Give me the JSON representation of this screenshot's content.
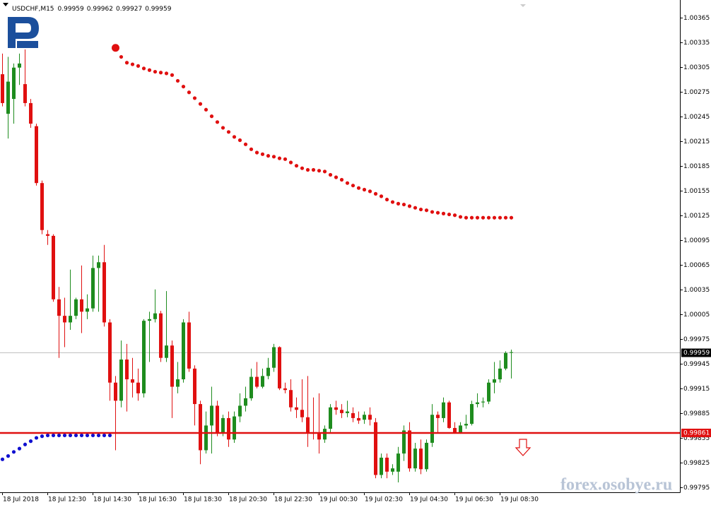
{
  "chart_data": {
    "type": "candlestick",
    "title": "USDCHF,M15",
    "watermark": "forex.osobye.ru",
    "categories": [
      "18 Jul 2018",
      null,
      null,
      null,
      null,
      null,
      null,
      null,
      "18 Jul 12:30",
      null,
      null,
      null,
      null,
      null,
      null,
      null,
      "18 Jul 14:30",
      null,
      null,
      null,
      null,
      null,
      null,
      null,
      "18 Jul 16:30",
      null,
      null,
      null,
      null,
      null,
      null,
      null,
      "18 Jul 18:30",
      null,
      null,
      null,
      null,
      null,
      null,
      null,
      "18 Jul 20:30",
      null,
      null,
      null,
      null,
      null,
      null,
      null,
      "18 Jul 22:30",
      null,
      null,
      null,
      null,
      null,
      null,
      null,
      "19 Jul 00:30",
      null,
      null,
      null,
      null,
      null,
      null,
      null,
      "19 Jul 02:30",
      null,
      null,
      null,
      null,
      null,
      null,
      null,
      "19 Jul 04:30",
      null,
      null,
      null,
      null,
      null,
      null,
      null,
      "19 Jul 06:30",
      null,
      null,
      null,
      null,
      null,
      null,
      null,
      "19 Jul 08:30",
      null,
      null
    ],
    "open": [
      1.00296,
      1.00248,
      1.00266,
      1.00304,
      1.00284,
      1.00261,
      1.00233,
      1.00164,
      1.00102,
      1.001,
      1.00023,
      1.00003,
      0.99995,
      1.00003,
      1.00023,
      1.00008,
      1.00012,
      1.00061,
      1.00068,
      0.99995,
      0.99922,
      0.999,
      0.9995,
      0.99926,
      0.99922,
      0.99909,
      0.99997,
      0.99999,
      1.00006,
      0.99952,
      0.99967,
      0.99917,
      0.99926,
      0.99995,
      0.99939,
      0.99896,
      0.9984,
      0.9987,
      0.99894,
      0.99861,
      0.99879,
      0.99853,
      0.99881,
      0.99894,
      0.99903,
      0.99929,
      0.99917,
      0.9993,
      0.9994,
      0.99965,
      0.99915,
      0.99913,
      0.99892,
      0.99889,
      0.9988,
      0.99861,
      0.9986,
      0.99853,
      0.99866,
      0.99892,
      0.99889,
      0.99885,
      0.99885,
      0.99879,
      0.99877,
      0.99883,
      0.99874,
      0.9981,
      0.99831,
      0.99814,
      0.99814,
      0.99836,
      0.99864,
      0.99818,
      0.99842,
      0.99817,
      0.99849,
      0.99883,
      0.99879,
      0.99898,
      0.99867,
      0.99861,
      0.9987,
      0.99872,
      0.99896,
      0.99898,
      0.99899,
      0.99922,
      0.99926,
      0.99939,
      0.99959
    ],
    "high": [
      1.00321,
      1.00317,
      1.00309,
      1.00321,
      1.00326,
      1.00266,
      1.00236,
      1.00167,
      1.00107,
      1.00102,
      1.00038,
      1.00025,
      1.00059,
      1.00025,
      1.00064,
      1.00029,
      1.00076,
      1.00076,
      1.00089,
      0.99999,
      0.9993,
      0.99973,
      0.99969,
      0.99952,
      0.99939,
      0.99999,
      1.00008,
      1.00035,
      1.00009,
      1.00033,
      0.99973,
      0.99947,
      0.99999,
      1.00008,
      0.99943,
      0.999,
      0.99887,
      0.99917,
      0.999,
      0.99883,
      0.99887,
      0.99887,
      0.99909,
      0.99917,
      0.99939,
      0.99947,
      0.99939,
      0.99952,
      0.99969,
      0.99966,
      0.99922,
      0.99926,
      0.99904,
      0.99926,
      0.9993,
      0.99904,
      0.99909,
      0.9987,
      0.99896,
      0.999,
      0.99896,
      0.999,
      0.99892,
      0.99887,
      0.99887,
      0.99892,
      0.99879,
      0.99836,
      0.99836,
      0.99823,
      0.99844,
      0.9987,
      0.99874,
      0.99849,
      0.99853,
      0.99853,
      0.99896,
      0.99887,
      0.99904,
      0.999,
      0.99874,
      0.99874,
      0.99883,
      0.999,
      0.99909,
      0.99904,
      0.99926,
      0.99947,
      0.99949,
      0.9996,
      0.99962
    ],
    "low": [
      1.00257,
      1.00218,
      1.00236,
      1.00283,
      1.00257,
      1.00231,
      1.00161,
      1.00102,
      1.00089,
      1.0002,
      0.99952,
      0.99965,
      0.99986,
      0.99999,
      0.99982,
      0.99999,
      1.00008,
      1.00008,
      0.9999,
      0.999,
      0.9984,
      0.99892,
      0.99887,
      0.99904,
      0.999,
      0.99904,
      0.99947,
      0.99995,
      0.99947,
      0.99947,
      0.99879,
      0.99909,
      0.99922,
      0.99935,
      0.9987,
      0.99823,
      0.99836,
      0.99836,
      0.99857,
      0.99857,
      0.99844,
      0.99849,
      0.99874,
      0.99887,
      0.999,
      0.99915,
      0.99915,
      0.99926,
      0.99935,
      0.99913,
      0.99909,
      0.99887,
      0.99879,
      0.99874,
      0.99844,
      0.99853,
      0.99836,
      0.99849,
      0.99861,
      0.99883,
      0.99879,
      0.9988,
      0.99874,
      0.99872,
      0.99872,
      0.9987,
      0.99806,
      0.99806,
      0.99806,
      0.9981,
      0.99801,
      0.99827,
      0.99814,
      0.99814,
      0.99811,
      0.99814,
      0.99844,
      0.99861,
      0.99874,
      0.99866,
      0.9986,
      0.9986,
      0.99866,
      0.9987,
      0.99892,
      0.99892,
      0.99896,
      0.99909,
      0.99922,
      0.99937,
      0.99927
    ],
    "close": [
      1.00261,
      1.00287,
      1.00304,
      1.00309,
      1.00261,
      1.00236,
      1.00164,
      1.00107,
      1.001,
      1.00023,
      1.00003,
      0.99995,
      1.00003,
      1.00023,
      1.00008,
      1.00012,
      1.00061,
      1.00068,
      0.99995,
      0.99922,
      0.999,
      0.9995,
      0.99926,
      0.99922,
      0.99909,
      0.99997,
      0.99999,
      1.00006,
      0.99952,
      0.99967,
      0.99917,
      0.99926,
      0.99995,
      0.99939,
      0.99896,
      0.9984,
      0.9987,
      0.99894,
      0.99861,
      0.99879,
      0.99853,
      0.99881,
      0.99894,
      0.99903,
      0.99929,
      0.99917,
      0.9993,
      0.9994,
      0.99965,
      0.99915,
      0.99913,
      0.99892,
      0.99889,
      0.9988,
      0.99861,
      0.9986,
      0.99853,
      0.99866,
      0.99892,
      0.99889,
      0.99885,
      0.99887,
      0.99879,
      0.99876,
      0.99883,
      0.99877,
      0.9981,
      0.99831,
      0.99814,
      0.99818,
      0.99836,
      0.99864,
      0.99818,
      0.99842,
      0.99817,
      0.99849,
      0.99883,
      0.99879,
      0.99898,
      0.99867,
      0.99861,
      0.9987,
      0.99872,
      0.99896,
      0.99898,
      0.99899,
      0.99922,
      0.99926,
      0.99939,
      0.99958,
      0.99959
    ],
    "up_color": "#1e8c1e",
    "down_color": "#e01010",
    "upper_dots": {
      "color": "#e01010",
      "values": [
        null,
        null,
        null,
        null,
        null,
        null,
        null,
        null,
        null,
        null,
        null,
        null,
        null,
        null,
        null,
        null,
        null,
        null,
        null,
        null,
        1.00328,
        1.00317,
        1.0031,
        1.00308,
        1.00306,
        1.00303,
        1.00301,
        1.00299,
        1.00298,
        1.00297,
        1.00295,
        1.00288,
        1.00281,
        1.00274,
        1.00267,
        1.0026,
        1.00253,
        1.00245,
        1.00238,
        1.00231,
        1.00226,
        1.0022,
        1.00216,
        1.00211,
        1.00205,
        1.00201,
        1.00199,
        1.00197,
        1.00196,
        1.00194,
        1.00193,
        1.00189,
        1.00185,
        1.00182,
        1.0018,
        1.0018,
        1.00179,
        1.00178,
        1.00174,
        1.00171,
        1.00168,
        1.00164,
        1.00161,
        1.00158,
        1.00156,
        1.00154,
        1.00151,
        1.00148,
        1.00144,
        1.00141,
        1.00139,
        1.00138,
        1.00136,
        1.00134,
        1.00132,
        1.00131,
        1.00129,
        1.00128,
        1.00127,
        1.00126,
        1.00125,
        1.00123,
        1.00122,
        1.00122,
        1.00122,
        1.00122,
        1.00122,
        1.00122,
        1.00122,
        1.00122,
        1.00122
      ]
    },
    "lower_dots": {
      "color": "#1010d0",
      "values": [
        0.99829,
        0.99833,
        0.99838,
        0.99842,
        0.99847,
        0.99851,
        0.99855,
        0.99857,
        0.99858,
        0.99858,
        0.99858,
        0.99858,
        0.99858,
        0.99858,
        0.99858,
        0.99858,
        0.99858,
        0.99858,
        0.99858,
        0.99858,
        null,
        null,
        null,
        null,
        null,
        null,
        null,
        null,
        null,
        null,
        null,
        null,
        null,
        null,
        null,
        null,
        null,
        null,
        null,
        null,
        null,
        null,
        null,
        null,
        null,
        null,
        null,
        null,
        null,
        null,
        null,
        null,
        null,
        null,
        null,
        null,
        null,
        null,
        null,
        null,
        null,
        null,
        null,
        null,
        null,
        null,
        null,
        null,
        null,
        null,
        null,
        null,
        null,
        null,
        null,
        null,
        null,
        null,
        null,
        null,
        null,
        null,
        null,
        null,
        null,
        null,
        null,
        null,
        null,
        null,
        null
      ]
    },
    "level": {
      "value": 0.99861,
      "color": "#e01010"
    },
    "ylim": [
      0.99789,
      1.00386
    ],
    "yticks": [
      1.00365,
      1.00335,
      1.00305,
      1.00275,
      1.00245,
      1.00215,
      1.00185,
      1.00155,
      1.00125,
      1.00095,
      1.00065,
      1.00035,
      1.00005,
      0.99975,
      0.99945,
      0.99915,
      0.99885,
      0.99855,
      0.99825,
      0.99795
    ]
  }
}
